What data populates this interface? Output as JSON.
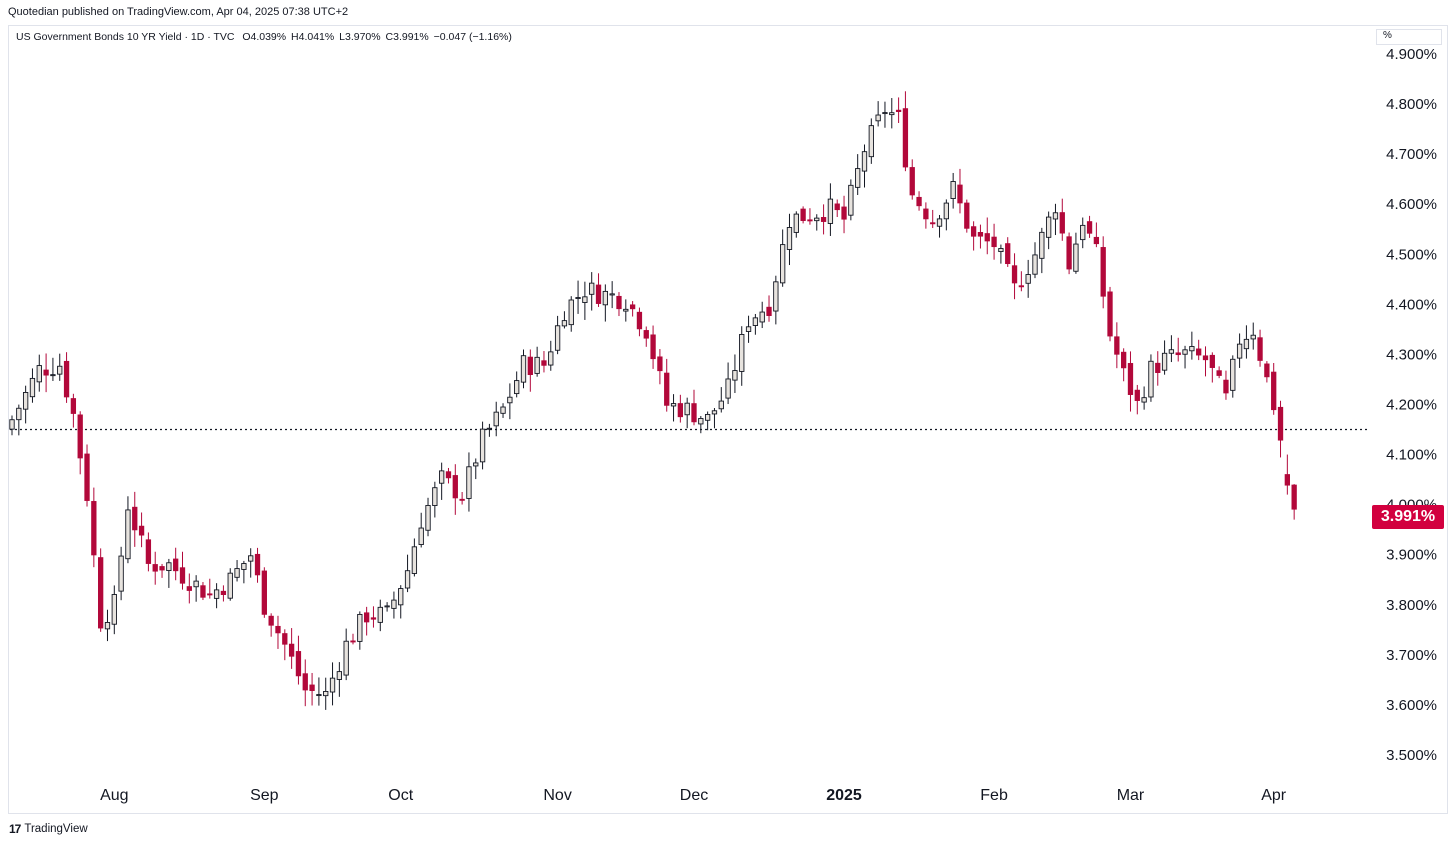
{
  "header": {
    "published": "Quotedian published on TradingView.com, Apr 04, 2025 07:38 UTC+2"
  },
  "legend": {
    "symbol": "US Government Bonds 10 YR Yield · 1D · TVC",
    "open": "O4.039%",
    "high": "H4.041%",
    "low": "L3.970%",
    "close": "C3.991%",
    "change": "−0.047 (−1.16%)"
  },
  "axis": {
    "unit_label": "%"
  },
  "last_price_label": "3.991%",
  "footer": {
    "brand": "TradingView",
    "logo_text": "17"
  },
  "colors": {
    "up_fill": "#e7e3de",
    "down": "#b2083a",
    "price_tag": "#d2003f",
    "reference_line": "#131722"
  },
  "chart_data": {
    "type": "candlestick",
    "symbol": "US Government Bonds 10 YR Yield",
    "interval": "1D",
    "y_unit": "%",
    "ylim": [
      3.45,
      4.92
    ],
    "yticks": [
      "3.500%",
      "3.600%",
      "3.700%",
      "3.800%",
      "3.900%",
      "4.000%",
      "4.100%",
      "4.200%",
      "4.300%",
      "4.400%",
      "4.500%",
      "4.600%",
      "4.700%",
      "4.800%",
      "4.900%"
    ],
    "xticks": [
      {
        "label": "Aug",
        "index": 15,
        "bold": false
      },
      {
        "label": "Sep",
        "index": 37,
        "bold": false
      },
      {
        "label": "Oct",
        "index": 57,
        "bold": false
      },
      {
        "label": "Nov",
        "index": 80,
        "bold": false
      },
      {
        "label": "Dec",
        "index": 100,
        "bold": false
      },
      {
        "label": "2025",
        "index": 122,
        "bold": true
      },
      {
        "label": "Feb",
        "index": 144,
        "bold": false
      },
      {
        "label": "Mar",
        "index": 164,
        "bold": false
      },
      {
        "label": "Apr",
        "index": 185,
        "bold": false
      }
    ],
    "reference_line": 4.15,
    "last_close": 3.991,
    "close_path": [
      [
        0,
        4.17
      ],
      [
        4,
        4.27
      ],
      [
        7,
        4.28
      ],
      [
        9,
        4.18
      ],
      [
        11,
        4.02
      ],
      [
        13,
        3.77
      ],
      [
        15,
        3.8
      ],
      [
        17,
        4.0
      ],
      [
        20,
        3.88
      ],
      [
        23,
        3.88
      ],
      [
        26,
        3.85
      ],
      [
        29,
        3.82
      ],
      [
        32,
        3.85
      ],
      [
        35,
        3.9
      ],
      [
        37,
        3.8
      ],
      [
        40,
        3.72
      ],
      [
        43,
        3.63
      ],
      [
        46,
        3.62
      ],
      [
        49,
        3.72
      ],
      [
        52,
        3.78
      ],
      [
        55,
        3.78
      ],
      [
        58,
        3.87
      ],
      [
        60,
        3.97
      ],
      [
        63,
        4.05
      ],
      [
        66,
        4.02
      ],
      [
        69,
        4.13
      ],
      [
        72,
        4.19
      ],
      [
        75,
        4.28
      ],
      [
        78,
        4.28
      ],
      [
        81,
        4.39
      ],
      [
        84,
        4.43
      ],
      [
        87,
        4.42
      ],
      [
        90,
        4.41
      ],
      [
        93,
        4.35
      ],
      [
        96,
        4.2
      ],
      [
        99,
        4.19
      ],
      [
        102,
        4.17
      ],
      [
        105,
        4.23
      ],
      [
        108,
        4.37
      ],
      [
        111,
        4.4
      ],
      [
        114,
        4.57
      ],
      [
        117,
        4.58
      ],
      [
        120,
        4.59
      ],
      [
        122,
        4.57
      ],
      [
        125,
        4.71
      ],
      [
        128,
        4.79
      ],
      [
        130,
        4.77
      ],
      [
        132,
        4.62
      ],
      [
        135,
        4.57
      ],
      [
        138,
        4.63
      ],
      [
        141,
        4.53
      ],
      [
        144,
        4.52
      ],
      [
        147,
        4.43
      ],
      [
        150,
        4.5
      ],
      [
        153,
        4.6
      ],
      [
        155,
        4.48
      ],
      [
        157,
        4.57
      ],
      [
        159,
        4.5
      ],
      [
        161,
        4.34
      ],
      [
        163,
        4.26
      ],
      [
        165,
        4.2
      ],
      [
        167,
        4.27
      ],
      [
        169,
        4.29
      ],
      [
        172,
        4.3
      ],
      [
        175,
        4.29
      ],
      [
        178,
        4.21
      ],
      [
        180,
        4.33
      ],
      [
        182,
        4.35
      ],
      [
        183,
        4.3
      ],
      [
        185,
        4.2
      ],
      [
        186,
        4.13
      ],
      [
        187,
        4.04
      ],
      [
        188,
        3.991
      ]
    ],
    "last_candles": [
      {
        "index": 187,
        "open": 4.06,
        "high": 4.1,
        "low": 4.02,
        "close": 4.039
      },
      {
        "index": 188,
        "open": 4.039,
        "high": 4.041,
        "low": 3.97,
        "close": 3.991
      }
    ]
  }
}
